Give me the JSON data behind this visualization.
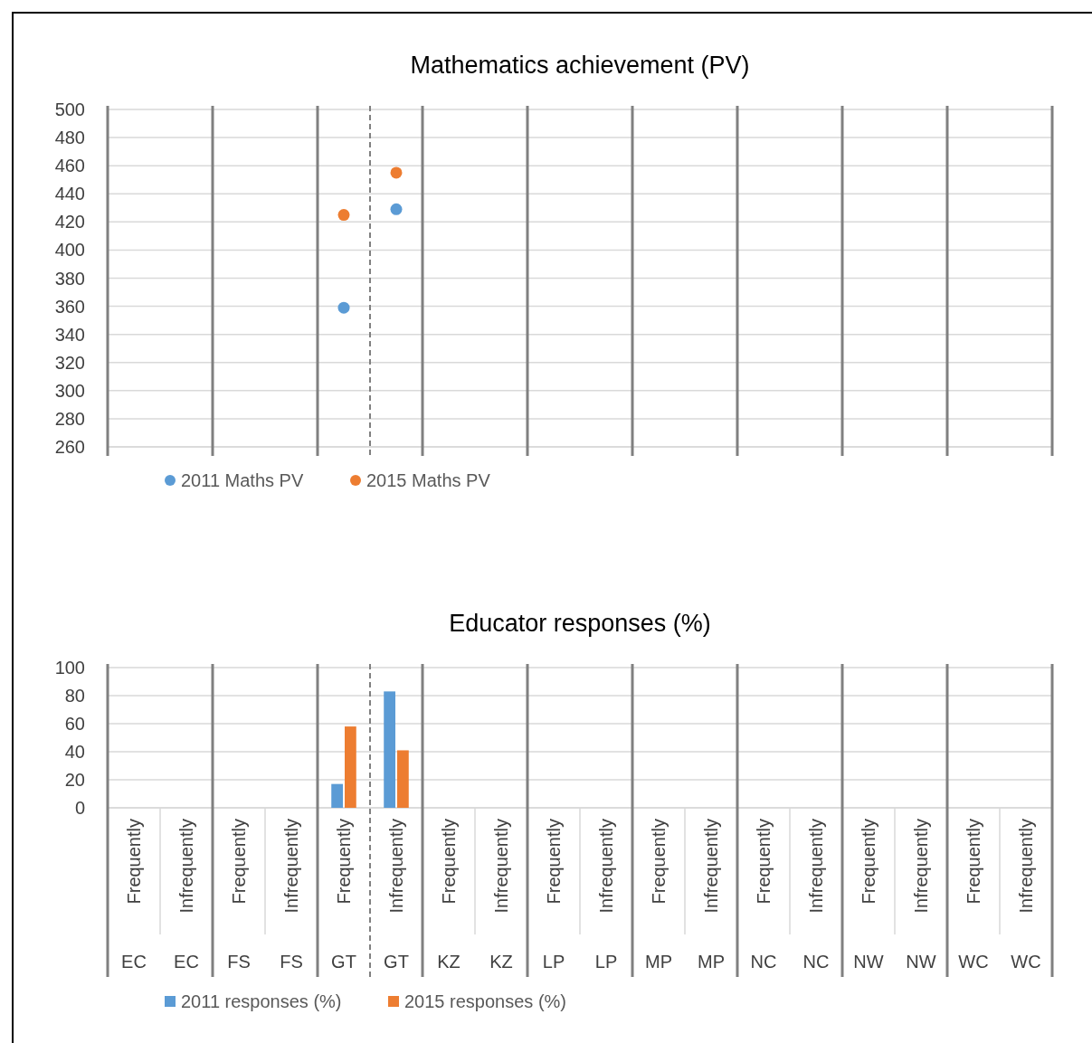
{
  "chart_data": [
    {
      "type": "scatter",
      "title": "Mathematics achievement (PV)",
      "categories": [
        null,
        null,
        null,
        null,
        null,
        null,
        null,
        null,
        null,
        null,
        null,
        null,
        null,
        null,
        null,
        null,
        null,
        null
      ],
      "series": [
        {
          "name": "2011 Maths PV",
          "color": "#5b9bd5",
          "values": [
            null,
            null,
            null,
            null,
            359,
            429,
            null,
            null,
            null,
            null,
            null,
            null,
            null,
            null,
            null,
            null,
            null,
            null
          ]
        },
        {
          "name": "2015 Maths PV",
          "color": "#ed7d31",
          "values": [
            null,
            null,
            null,
            null,
            425,
            455,
            null,
            null,
            null,
            null,
            null,
            null,
            null,
            null,
            null,
            null,
            null,
            null
          ]
        }
      ],
      "ylim": [
        260,
        500
      ],
      "yticks": [
        260,
        280,
        300,
        320,
        340,
        360,
        380,
        400,
        420,
        440,
        460,
        480,
        500
      ],
      "grid": "y",
      "legend": "bottom left",
      "marker": "circle",
      "tick_labels": "y"
    },
    {
      "type": "bar",
      "title": "Educator responses (%)",
      "categories": [
        "Frequently\nEC",
        "Infrequently\nEC",
        "Frequently\nFS",
        "Infrequently\nFS",
        "Frequently\nGT",
        "Infrequently\nGT",
        "Frequently\nKZ",
        "Infrequently\nKZ",
        "Frequently\nLP",
        "Infrequently\nLP",
        "Frequently\nMP",
        "Infrequently\nMP",
        "Frequently\nNC",
        "Infrequently\nNC",
        "Frequently\nNW",
        "Infrequently\nNW",
        "Frequently\nWC",
        "Infrequently\nWC"
      ],
      "series": [
        {
          "name": "2011 responses (%)",
          "color": "#5b9bd5",
          "values": [
            null,
            null,
            null,
            null,
            17,
            83,
            null,
            null,
            null,
            null,
            null,
            null,
            null,
            null,
            null,
            null,
            null,
            null
          ]
        },
        {
          "name": "2015 responses (%)",
          "color": "#ed7d31",
          "values": [
            null,
            null,
            null,
            null,
            58,
            41,
            null,
            null,
            null,
            null,
            null,
            null,
            null,
            null,
            null,
            null,
            null,
            null
          ]
        }
      ],
      "ylim": [
        0,
        100
      ],
      "yticks": [
        0,
        20,
        40,
        60,
        80,
        100
      ],
      "grid": "y",
      "legend": "bottom left"
    }
  ]
}
